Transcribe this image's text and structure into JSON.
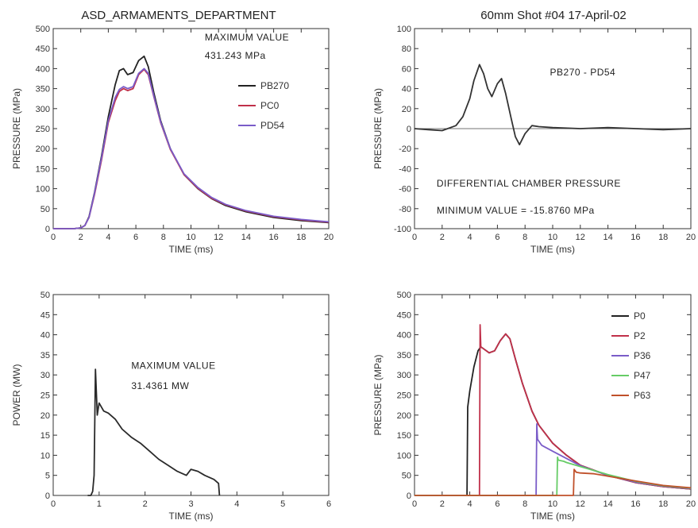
{
  "suptitle_left": "ASD_ARMAMENTS_DEPARTMENT",
  "suptitle_right": "60mm  Shot #04  17-April-02",
  "chart_data": [
    {
      "id": "p1",
      "type": "line",
      "title": "",
      "xlabel": "TIME (ms)",
      "ylabel": "PRESSURE (MPa)",
      "xlim": [
        0,
        20
      ],
      "ylim": [
        0,
        500
      ],
      "xticks": [
        0,
        2,
        4,
        6,
        8,
        10,
        12,
        14,
        16,
        18,
        20
      ],
      "yticks": [
        0,
        50,
        100,
        150,
        200,
        250,
        300,
        350,
        400,
        450,
        500
      ],
      "legend_position": "right",
      "annotations": [
        {
          "text": "MAXIMUM VALUE",
          "at": [
            11.0,
            470
          ]
        },
        {
          "text": "431.243 MPa",
          "at": [
            11.0,
            425
          ]
        }
      ],
      "series": [
        {
          "name": "PB270",
          "color": "#222222",
          "x": [
            0,
            1.5,
            2.0,
            2.3,
            2.6,
            3.0,
            3.5,
            4.0,
            4.5,
            4.8,
            5.1,
            5.4,
            5.8,
            6.2,
            6.6,
            6.9,
            7.3,
            7.8,
            8.5,
            9.5,
            10.5,
            11.5,
            12.5,
            14,
            16,
            18,
            20
          ],
          "y": [
            0,
            0,
            2,
            8,
            30,
            90,
            180,
            280,
            360,
            395,
            400,
            385,
            390,
            420,
            431,
            405,
            340,
            270,
            200,
            135,
            100,
            75,
            58,
            42,
            28,
            20,
            15
          ]
        },
        {
          "name": "PC0",
          "color": "#c0304a",
          "x": [
            0,
            1.5,
            2.0,
            2.3,
            2.6,
            3.0,
            3.5,
            4.0,
            4.5,
            4.8,
            5.1,
            5.4,
            5.8,
            6.2,
            6.6,
            6.9,
            7.3,
            7.8,
            8.5,
            9.5,
            10.5,
            11.5,
            12.5,
            14,
            16,
            18,
            20
          ],
          "y": [
            0,
            0,
            2,
            8,
            28,
            85,
            170,
            265,
            320,
            343,
            350,
            345,
            350,
            385,
            398,
            385,
            330,
            265,
            198,
            135,
            101,
            76,
            60,
            44,
            30,
            22,
            16
          ]
        },
        {
          "name": "PD54",
          "color": "#7a5cc8",
          "x": [
            0,
            1.5,
            2.0,
            2.3,
            2.6,
            3.0,
            3.5,
            4.0,
            4.5,
            4.8,
            5.1,
            5.4,
            5.8,
            6.2,
            6.6,
            6.9,
            7.3,
            7.8,
            8.5,
            9.5,
            10.5,
            11.5,
            12.5,
            14,
            16,
            18,
            20
          ],
          "y": [
            0,
            0,
            2,
            8,
            28,
            88,
            175,
            270,
            328,
            348,
            355,
            350,
            355,
            388,
            400,
            388,
            332,
            267,
            200,
            137,
            103,
            78,
            61,
            45,
            31,
            23,
            17
          ]
        }
      ]
    },
    {
      "id": "p2",
      "type": "line",
      "title": "",
      "xlabel": "TIME (ms)",
      "ylabel": "PRESSURE (MPa)",
      "xlim": [
        0,
        20
      ],
      "ylim": [
        -100,
        100
      ],
      "xticks": [
        0,
        2,
        4,
        6,
        8,
        10,
        12,
        14,
        16,
        18,
        20
      ],
      "yticks": [
        -100,
        -80,
        -60,
        -40,
        -20,
        0,
        20,
        40,
        60,
        80,
        100
      ],
      "legend_position": "none",
      "annotations": [
        {
          "text": "PB270 - PD54",
          "at": [
            9.8,
            53
          ]
        },
        {
          "text": "DIFFERENTIAL CHAMBER PRESSURE",
          "at": [
            1.6,
            -58
          ]
        },
        {
          "text": "MINIMUM VALUE =  -15.8760 MPa",
          "at": [
            1.6,
            -85
          ]
        }
      ],
      "series": [
        {
          "name": "",
          "color": "#333333",
          "x": [
            0,
            1,
            2,
            3,
            3.5,
            4,
            4.3,
            4.7,
            5.0,
            5.3,
            5.6,
            6.0,
            6.3,
            6.6,
            7.0,
            7.3,
            7.6,
            8.0,
            8.5,
            9,
            10,
            12,
            14,
            16,
            18,
            20
          ],
          "y": [
            0,
            -1,
            -2,
            3,
            12,
            30,
            48,
            64,
            55,
            40,
            32,
            45,
            50,
            35,
            10,
            -8,
            -16,
            -5,
            3,
            2,
            1,
            0,
            1,
            0,
            -1,
            0
          ]
        }
      ]
    },
    {
      "id": "p3",
      "type": "line",
      "title": "",
      "xlabel": "TIME (ms)",
      "ylabel": "POWER (MW)",
      "xlim": [
        0,
        6
      ],
      "ylim": [
        0,
        50
      ],
      "xticks": [
        0,
        1,
        2,
        3,
        4,
        5,
        6
      ],
      "yticks": [
        0,
        5,
        10,
        15,
        20,
        25,
        30,
        35,
        40,
        45,
        50
      ],
      "legend_position": "none",
      "annotations": [
        {
          "text": "MAXIMUM VALUE",
          "at": [
            1.7,
            31.5
          ]
        },
        {
          "text": "31.4361 MW",
          "at": [
            1.7,
            26.5
          ]
        }
      ],
      "series": [
        {
          "name": "",
          "color": "#2a2a2a",
          "x": [
            0.75,
            0.82,
            0.86,
            0.89,
            0.92,
            0.96,
            1.0,
            1.1,
            1.2,
            1.35,
            1.5,
            1.7,
            1.9,
            2.1,
            2.3,
            2.5,
            2.7,
            2.9,
            3.0,
            3.15,
            3.3,
            3.5,
            3.6,
            3.62
          ],
          "y": [
            0,
            0,
            1,
            5,
            31.4,
            20,
            23,
            21,
            20.5,
            19,
            16.5,
            14.5,
            13,
            11,
            9,
            7.5,
            6,
            5,
            6.5,
            6,
            5,
            4,
            3,
            0
          ]
        }
      ]
    },
    {
      "id": "p4",
      "type": "line",
      "title": "",
      "xlabel": "TIME (ms)",
      "ylabel": "PRESSURE (MPa)",
      "xlim": [
        0,
        20
      ],
      "ylim": [
        0,
        500
      ],
      "xticks": [
        0,
        2,
        4,
        6,
        8,
        10,
        12,
        14,
        16,
        18,
        20
      ],
      "yticks": [
        0,
        50,
        100,
        150,
        200,
        250,
        300,
        350,
        400,
        450,
        500
      ],
      "legend_position": "right",
      "annotations": [],
      "series": [
        {
          "name": "P0",
          "color": "#222222",
          "x": [
            0,
            3.8,
            3.85,
            4.0,
            4.3,
            4.6,
            4.8,
            5.0,
            5.4,
            5.8,
            6.2,
            6.6,
            6.9,
            7.3,
            7.8,
            8.5,
            9.0,
            10,
            11,
            12,
            14,
            16,
            18,
            20
          ],
          "y": [
            0,
            0,
            220,
            260,
            320,
            360,
            370,
            365,
            355,
            360,
            385,
            402,
            390,
            340,
            280,
            210,
            175,
            130,
            100,
            75,
            50,
            32,
            22,
            16
          ]
        },
        {
          "name": "P2",
          "color": "#c0304a",
          "x": [
            0,
            4.7,
            4.75,
            4.8,
            5.0,
            5.4,
            5.8,
            6.2,
            6.6,
            6.9,
            7.3,
            7.8,
            8.5,
            9.0,
            10,
            11,
            12,
            14,
            16,
            18,
            20
          ],
          "y": [
            0,
            0,
            425,
            370,
            365,
            355,
            360,
            385,
            402,
            390,
            340,
            280,
            210,
            175,
            130,
            100,
            75,
            50,
            32,
            22,
            16
          ]
        },
        {
          "name": "P36",
          "color": "#7a5cc8",
          "x": [
            0,
            8.8,
            8.85,
            8.9,
            9.2,
            10,
            11,
            12,
            14,
            16,
            18,
            20
          ],
          "y": [
            0,
            0,
            178,
            140,
            125,
            110,
            92,
            74,
            50,
            33,
            23,
            17
          ]
        },
        {
          "name": "P47",
          "color": "#66cc66",
          "x": [
            0,
            10.3,
            10.35,
            10.4,
            10.8,
            11,
            12,
            14,
            16,
            18,
            20
          ],
          "y": [
            0,
            0,
            95,
            88,
            85,
            82,
            72,
            52,
            35,
            24,
            18
          ]
        },
        {
          "name": "P63",
          "color": "#c0502a",
          "x": [
            0,
            11.5,
            11.55,
            11.7,
            12,
            13,
            14,
            16,
            18,
            20
          ],
          "y": [
            0,
            0,
            65,
            58,
            56,
            54,
            48,
            36,
            25,
            19
          ]
        }
      ]
    }
  ]
}
